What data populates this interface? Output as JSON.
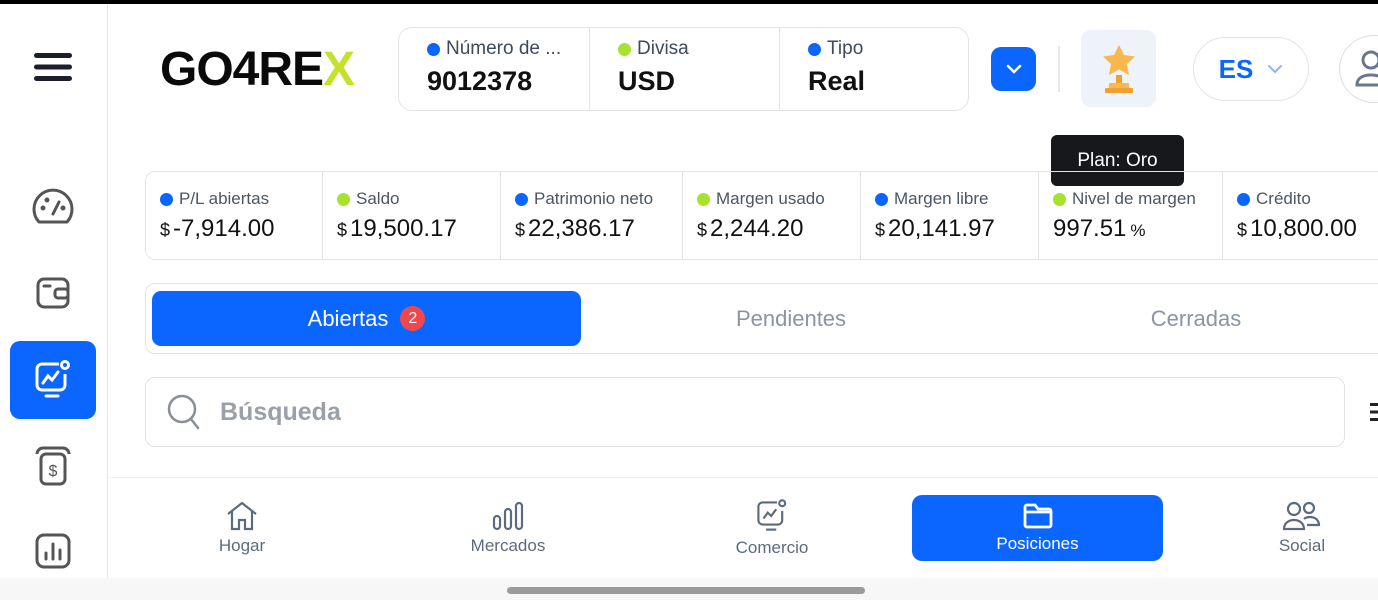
{
  "brand": {
    "logo_main": "GO4RE",
    "logo_accent": "X"
  },
  "account": [
    {
      "label": "Número de ...",
      "value": "9012378",
      "dot": "#0a66ff"
    },
    {
      "label": "Divisa",
      "value": "USD",
      "dot": "#a6e22e"
    },
    {
      "label": "Tipo",
      "value": "Real",
      "dot": "#0a66ff"
    }
  ],
  "header": {
    "language": "ES",
    "plan_tooltip": "Plan: Oro",
    "dropdown_icon": "chevron-down-icon",
    "plan_icon": "trophy-icon",
    "profile_icon": "user-icon"
  },
  "stats": [
    {
      "label": "P/L abiertas",
      "currency": "$",
      "value": "-7,914.00",
      "dot": "#0a66ff",
      "negative": true
    },
    {
      "label": "Saldo",
      "currency": "$",
      "value": "19,500.17",
      "dot": "#a6e22e"
    },
    {
      "label": "Patrimonio neto",
      "currency": "$",
      "value": "22,386.17",
      "dot": "#0a66ff"
    },
    {
      "label": "Margen usado",
      "currency": "$",
      "value": "2,244.20",
      "dot": "#a6e22e"
    },
    {
      "label": "Margen libre",
      "currency": "$",
      "value": "20,141.97",
      "dot": "#0a66ff"
    },
    {
      "label": "Nivel de margen",
      "value": "997.51",
      "unit": "%",
      "dot": "#a6e22e"
    },
    {
      "label": "Crédito",
      "currency": "$",
      "value": "10,800.00",
      "dot": "#0a66ff"
    }
  ],
  "tabs": [
    {
      "label": "Abiertas",
      "badge": "2",
      "active": true
    },
    {
      "label": "Pendientes"
    },
    {
      "label": "Cerradas"
    }
  ],
  "search": {
    "placeholder": "Búsqueda"
  },
  "bottom_nav": [
    {
      "label": "Hogar"
    },
    {
      "label": "Mercados"
    },
    {
      "label": "Comercio"
    },
    {
      "label": "Posiciones",
      "active": true
    },
    {
      "label": "Social"
    }
  ],
  "colors": {
    "accent": "#0a66ff",
    "negative": "#e5484d",
    "green": "#a6e22e",
    "badge": "#f0474e"
  }
}
